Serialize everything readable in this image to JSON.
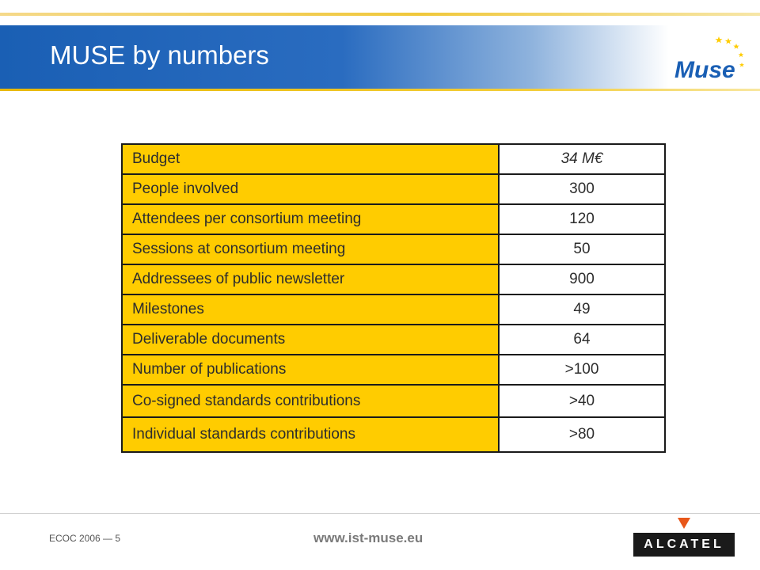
{
  "slide": {
    "title": "MUSE by numbers"
  },
  "logo": {
    "text": "Muse",
    "colors": {
      "blue": "#1a5fb4",
      "yellow": "#ffcc00",
      "orange": "#e8571a"
    }
  },
  "table": {
    "rows": [
      {
        "label": "Budget",
        "value": "34 M€"
      },
      {
        "label": "People involved",
        "value": "300"
      },
      {
        "label": "Attendees per consortium meeting",
        "value": "120"
      },
      {
        "label": "Sessions at consortium meeting",
        "value": "50"
      },
      {
        "label": "Addressees of public newsletter",
        "value": "900"
      },
      {
        "label": "Milestones",
        "value": "49"
      },
      {
        "label": "Deliverable documents",
        "value": "64"
      },
      {
        "label": "Number of publications",
        "value": ">100"
      },
      {
        "label": "Co-signed standards contributions",
        "value": ">40"
      },
      {
        "label": "Individual standards contributions",
        "value": ">80"
      }
    ]
  },
  "footer": {
    "event": "ECOC 2006 — 5",
    "url": "www.ist-muse.eu",
    "brand": "ALCATEL"
  },
  "colors": {
    "banner_blue": "#1a5fb4",
    "accent_yellow": "#ffcc00",
    "alcatel_orange": "#e8571a"
  }
}
